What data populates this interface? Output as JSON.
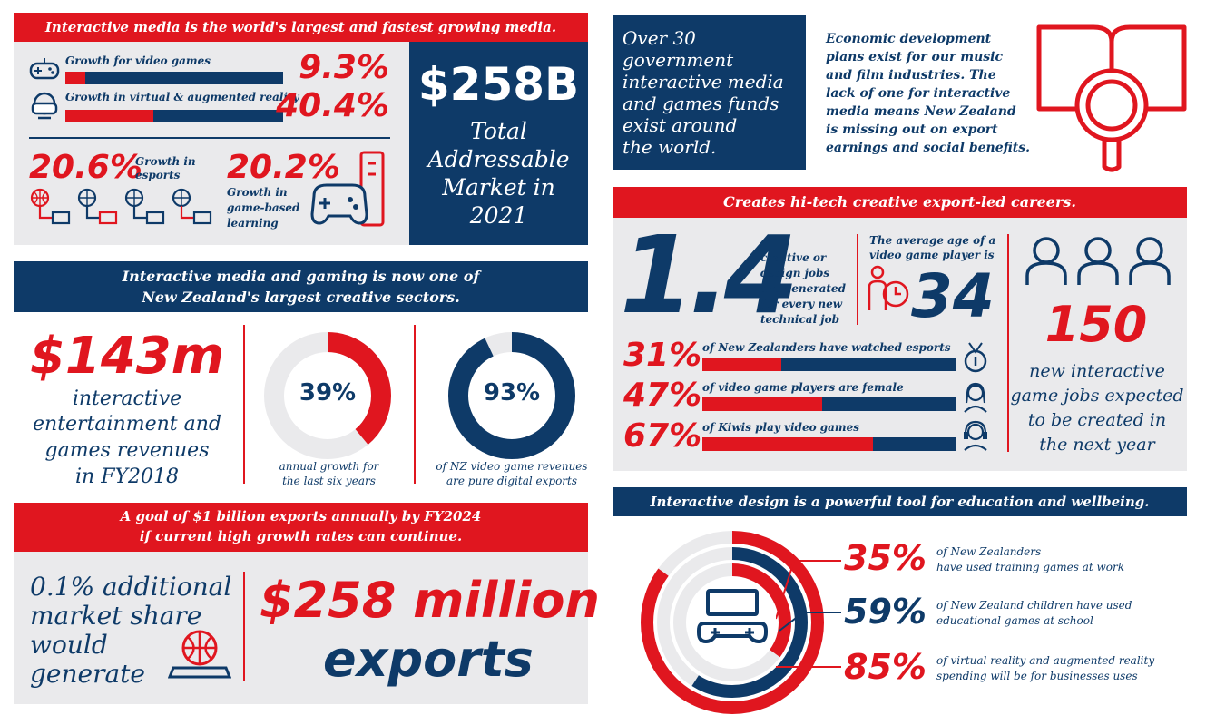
{
  "colors": {
    "red": "#e0161f",
    "navy": "#0e3a68",
    "grey": "#eaeaec"
  },
  "panel1": {
    "banner": "Interactive media is the world's largest and fastest growing media.",
    "rows": [
      {
        "label": "Growth for video games",
        "value": "9.3%",
        "fill": 0.093,
        "icon": "gamepad-icon"
      },
      {
        "label": "Growth in virtual & augmented reality",
        "value": "40.4%",
        "fill": 0.404,
        "icon": "vr-headset-icon"
      }
    ],
    "esports": {
      "value": "20.6%",
      "label_line1": "Growth in",
      "label_line2": "esports"
    },
    "learning": {
      "value": "20.2%",
      "label_line1": "Growth in",
      "label_line2": "game-based",
      "label_line3": "learning"
    },
    "total": {
      "value": "$258B",
      "line1": "Total",
      "line2": "Addressable",
      "line3": "Market in",
      "line4": "2021"
    }
  },
  "panel2": {
    "banner_line1": "Interactive media and gaming is now one of",
    "banner_line2": "New Zealand's largest creative sectors.",
    "revenue": {
      "value": "$143m",
      "line1": "interactive",
      "line2": "entertainment and",
      "line3": "games revenues",
      "line4": "in FY2018"
    },
    "donut1": {
      "value": "39%",
      "fraction": 0.39,
      "caption_line1": "annual growth for",
      "caption_line2": "the last six years"
    },
    "donut2": {
      "value": "93%",
      "fraction": 0.93,
      "caption_line1": "of NZ video game revenues",
      "caption_line2": "are pure digital exports"
    }
  },
  "panel3": {
    "banner_line1": "A goal of $1 billion exports annually by FY2024",
    "banner_line2": "if current high growth rates can continue.",
    "left_line1": "0.1% additional",
    "left_line2": "market share",
    "left_line3": "would",
    "left_line4": "generate",
    "big_line1": "$258 million",
    "big_line2": "exports"
  },
  "panel4": {
    "navy_line1": "Over 30",
    "navy_line2": "government",
    "navy_line3": "interactive media",
    "navy_line4": "and games funds",
    "navy_line5": "exist around",
    "navy_line6": "the world.",
    "text_line1": "Economic development",
    "text_line2": "plans exist for our music",
    "text_line3": "and film industries. The",
    "text_line4": "lack of one for interactive",
    "text_line5": "media means New Zealand",
    "text_line6": "is missing out on export",
    "text_line7": "earnings and social benefits."
  },
  "panel5": {
    "banner": "Creates hi-tech creative export-led careers.",
    "ratio": {
      "value": "1.4",
      "line1": "creative or",
      "line2": "design jobs",
      "line3": "are generated",
      "line4": "for every new",
      "line5": "technical job"
    },
    "age": {
      "line1": "The average age of a",
      "line2": "video game player is",
      "value": "34"
    },
    "rows": [
      {
        "value": "31%",
        "label": "of New Zealanders have watched esports",
        "fill": 0.31,
        "icon": "medal-icon"
      },
      {
        "value": "47%",
        "label": "of video game players are female",
        "fill": 0.47,
        "icon": "female-player-icon"
      },
      {
        "value": "67%",
        "label": "of Kiwis play video games",
        "fill": 0.67,
        "icon": "headset-icon"
      }
    ],
    "jobs": {
      "value": "150",
      "line1": "new interactive",
      "line2": "game jobs expected",
      "line3": "to be created in",
      "line4": "the next year"
    }
  },
  "panel6": {
    "banner": "Interactive design is a powerful tool for education and wellbeing.",
    "rows": [
      {
        "value": "35%",
        "line1": "of New Zealanders",
        "line2": "have used training games at work",
        "fraction": 0.35
      },
      {
        "value": "59%",
        "line1": "of New Zealand children have used",
        "line2": "educational games at school",
        "fraction": 0.59
      },
      {
        "value": "85%",
        "line1": "of virtual reality and augmented reality",
        "line2": "spending will be for businesses uses",
        "fraction": 0.85
      }
    ]
  }
}
